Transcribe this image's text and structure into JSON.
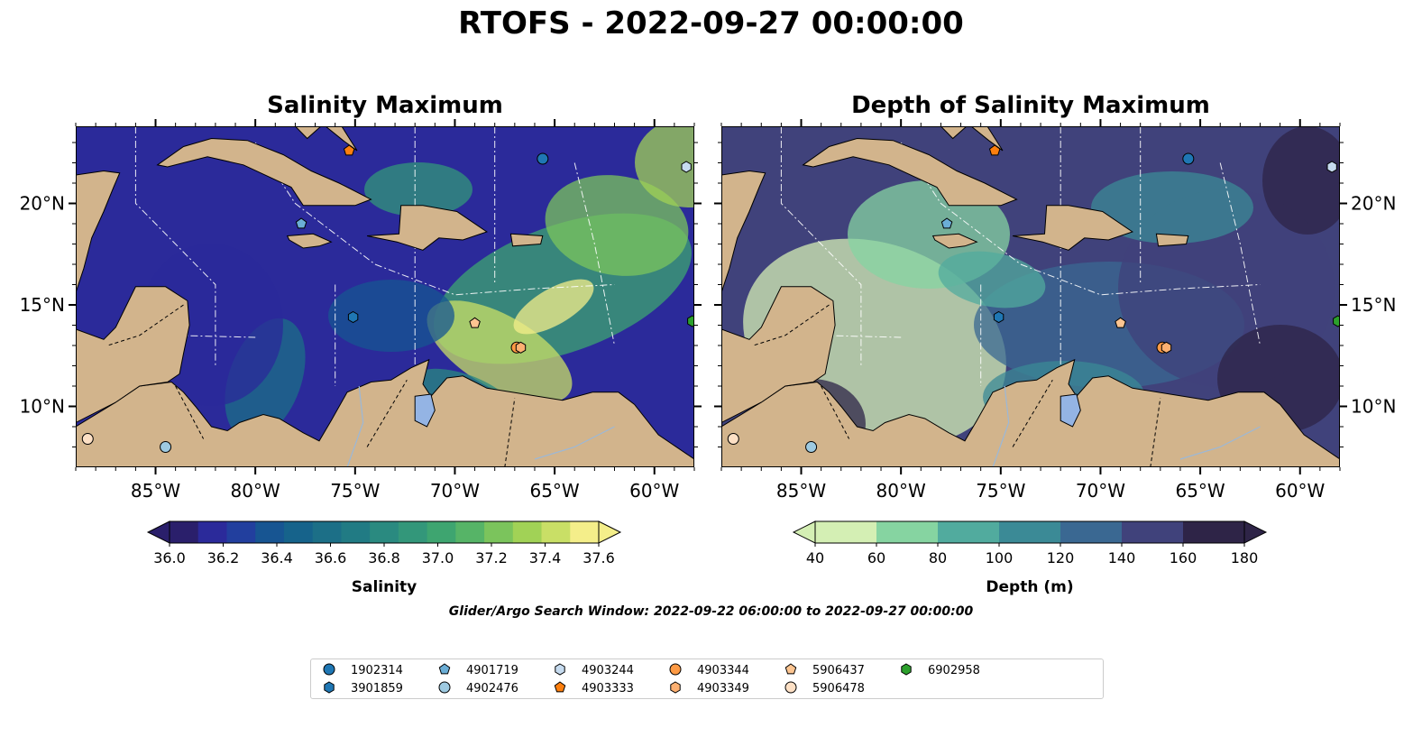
{
  "suptitle": "RTOFS - 2022-09-27 00:00:00",
  "panels": [
    {
      "title": "Salinity Maximum"
    },
    {
      "title": "Depth of Salinity Maximum"
    }
  ],
  "axes": {
    "lon_ticks": [
      "85°W",
      "80°W",
      "75°W",
      "70°W",
      "65°W",
      "60°W"
    ],
    "lat_ticks": [
      "20°N",
      "15°N",
      "10°N"
    ]
  },
  "colorbars": [
    {
      "label": "Salinity",
      "ticks": [
        "36.0",
        "36.2",
        "36.4",
        "36.6",
        "36.8",
        "37.0",
        "37.2",
        "37.4",
        "37.6"
      ],
      "colors": [
        "#2a1f6b",
        "#2b2a9a",
        "#223f9e",
        "#175592",
        "#16638b",
        "#1c6f87",
        "#217b84",
        "#2a8a80",
        "#33977a",
        "#3ea570",
        "#56b467",
        "#7bc45c",
        "#a1d256",
        "#c9df66",
        "#f4ee8a"
      ],
      "extend": "both"
    },
    {
      "label": "Depth (m)",
      "ticks": [
        "40",
        "60",
        "80",
        "100",
        "120",
        "140",
        "160",
        "180"
      ],
      "colors": [
        "#d4efb4",
        "#86d4a1",
        "#51ab9e",
        "#3b8a96",
        "#3a6892",
        "#40427b",
        "#2e2447"
      ],
      "extend": "both"
    }
  ],
  "search_window": "Glider/Argo Search Window: 2022-09-22 06:00:00 to 2022-09-27 00:00:00",
  "legend": [
    {
      "id": "1902314",
      "marker": "circle",
      "color": "#1f77b4"
    },
    {
      "id": "3901859",
      "marker": "hexagon",
      "color": "#1f77b4"
    },
    {
      "id": "4901719",
      "marker": "pentagon",
      "color": "#6baed6"
    },
    {
      "id": "4902476",
      "marker": "circle",
      "color": "#9ecae1"
    },
    {
      "id": "4903244",
      "marker": "hexagon",
      "color": "#c6dbef"
    },
    {
      "id": "4903333",
      "marker": "pentagon",
      "color": "#fd7f0e"
    },
    {
      "id": "4903344",
      "marker": "circle",
      "color": "#fd9a44"
    },
    {
      "id": "4903349",
      "marker": "hexagon",
      "color": "#fdb071"
    },
    {
      "id": "5906437",
      "marker": "pentagon",
      "color": "#fdc591"
    },
    {
      "id": "5906478",
      "marker": "circle",
      "color": "#fde0c5"
    },
    {
      "id": "6902958",
      "marker": "hexagon",
      "color": "#2ca02c"
    }
  ],
  "colors": {
    "land": "#d2b48c",
    "lakes": "#94b4e4",
    "rivers": "#9bb8d8"
  }
}
